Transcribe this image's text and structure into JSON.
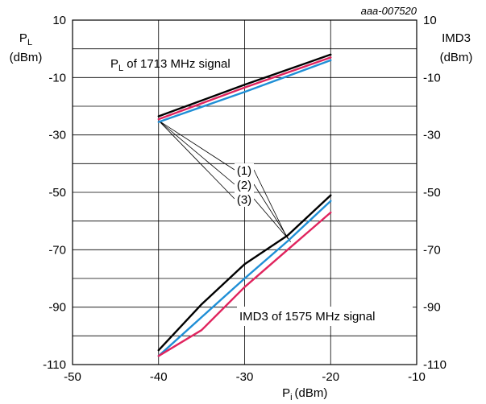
{
  "chart_data": {
    "type": "line",
    "figure_id": "aaa-007520",
    "xlabel": "P",
    "xlabel_sub": "i",
    "xlabel_unit": "(dBm)",
    "ylabel_left": "P",
    "ylabel_left_sub": "L",
    "ylabel_left_unit": "(dBm)",
    "ylabel_right": "IMD3",
    "ylabel_right_unit": "(dBm)",
    "xlim": [
      -50,
      -10
    ],
    "ylim": [
      -110,
      10
    ],
    "x_ticks": [
      -50,
      -40,
      -30,
      -20,
      -10
    ],
    "y_ticks": [
      -110,
      -90,
      -70,
      -50,
      -30,
      -10,
      10
    ],
    "grid": true,
    "annotations": {
      "pl_group": {
        "prefix": "P",
        "sub": "L",
        "suffix": " of 1713 MHz signal"
      },
      "imd3_group": "IMD3 of 1575 MHz signal",
      "legend_labels": [
        "(1)",
        "(2)",
        "(3)"
      ]
    },
    "series": [
      {
        "group": "PL",
        "label": "(1)",
        "color": "#000000",
        "x": [
          -40,
          -30,
          -20
        ],
        "y": [
          -23.5,
          -12.5,
          -2
        ]
      },
      {
        "group": "PL",
        "label": "(2)",
        "color": "#e0245e",
        "x": [
          -40,
          -30,
          -20
        ],
        "y": [
          -24.5,
          -13.5,
          -3
        ]
      },
      {
        "group": "PL",
        "label": "(3)",
        "color": "#1f8fd6",
        "x": [
          -40,
          -30,
          -20
        ],
        "y": [
          -25.5,
          -15,
          -4
        ]
      },
      {
        "group": "IMD3",
        "label": "(1)",
        "color": "#000000",
        "x": [
          -40,
          -35,
          -30,
          -25,
          -20
        ],
        "y": [
          -105,
          -89,
          -75,
          -65,
          -51
        ]
      },
      {
        "group": "IMD3",
        "label": "(2)",
        "color": "#e0245e",
        "x": [
          -40,
          -35,
          -30,
          -25,
          -20
        ],
        "y": [
          -107,
          -98,
          -83,
          -70,
          -57
        ]
      },
      {
        "group": "IMD3",
        "label": "(3)",
        "color": "#1f8fd6",
        "x": [
          -40,
          -35,
          -30,
          -25,
          -20
        ],
        "y": [
          -107,
          -93.5,
          -80,
          -67,
          -53
        ]
      }
    ]
  }
}
